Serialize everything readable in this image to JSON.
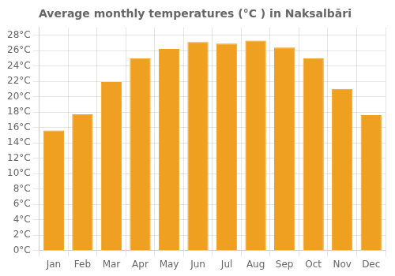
{
  "chart_data": {
    "type": "bar",
    "title": "Average monthly temperatures (°C ) in Naksalbāri",
    "categories": [
      "Jan",
      "Feb",
      "Mar",
      "Apr",
      "May",
      "Jun",
      "Jul",
      "Aug",
      "Sep",
      "Oct",
      "Nov",
      "Dec"
    ],
    "values": [
      15.6,
      17.7,
      21.9,
      25.0,
      26.2,
      27.1,
      26.9,
      27.3,
      26.4,
      25.0,
      21.0,
      17.6
    ],
    "color": "#F0A020",
    "ylim": [
      0,
      29
    ],
    "yticks": [
      {
        "value": 0,
        "label": "0°C"
      },
      {
        "value": 2,
        "label": "2°C"
      },
      {
        "value": 4,
        "label": "4°C"
      },
      {
        "value": 6,
        "label": "6°C"
      },
      {
        "value": 8,
        "label": "8°C"
      },
      {
        "value": 10,
        "label": "10°C"
      },
      {
        "value": 12,
        "label": "12°C"
      },
      {
        "value": 14,
        "label": "14°C"
      },
      {
        "value": 16,
        "label": "16°C"
      },
      {
        "value": 18,
        "label": "18°C"
      },
      {
        "value": 20,
        "label": "20°C"
      },
      {
        "value": 22,
        "label": "22°C"
      },
      {
        "value": 24,
        "label": "24°C"
      },
      {
        "value": 26,
        "label": "26°C"
      },
      {
        "value": 28,
        "label": "28°C"
      }
    ],
    "grid": true
  }
}
